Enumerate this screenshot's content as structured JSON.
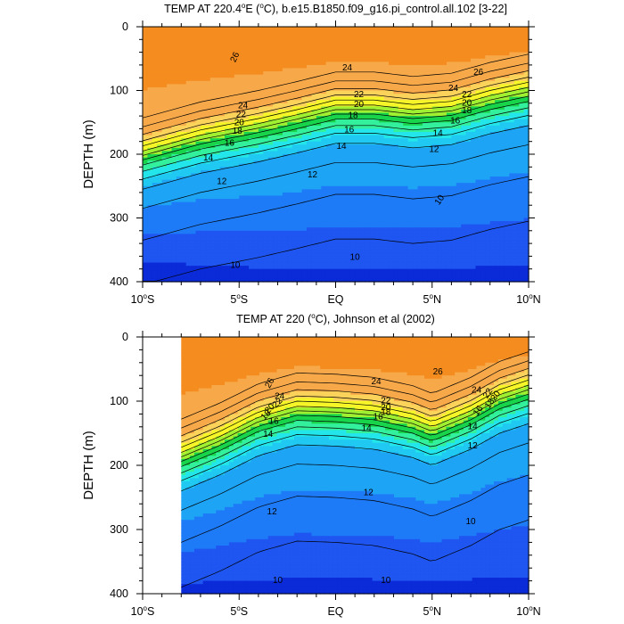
{
  "chart_data": [
    {
      "type": "contour",
      "title": "TEMP AT 220.4°E (°C), b.e15.B1850.f09_g16.pi_control.all.102 [3-22]",
      "title_parts": {
        "a": "TEMP AT 220.4",
        "b": "E (",
        "c": "C), b.e15.B1850.f09_g16.pi_control.all.102 [3-22]",
        "deg": "o"
      },
      "ylabel": "DEPTH (m)",
      "xlim": [
        -10,
        10
      ],
      "ylim": [
        400,
        0
      ],
      "x_ticks": [
        {
          "value": -10,
          "num": "10",
          "deg": "o",
          "hem": "S"
        },
        {
          "value": -5,
          "num": "5",
          "deg": "o",
          "hem": "S"
        },
        {
          "value": 0,
          "num": "EQ",
          "deg": "",
          "hem": ""
        },
        {
          "value": 5,
          "num": "5",
          "deg": "o",
          "hem": "N"
        },
        {
          "value": 10,
          "num": "10",
          "deg": "o",
          "hem": "N"
        }
      ],
      "y_ticks": [
        {
          "value": 0,
          "label": "0"
        },
        {
          "value": 100,
          "label": "100"
        },
        {
          "value": 200,
          "label": "200"
        },
        {
          "value": 300,
          "label": "300"
        },
        {
          "value": 400,
          "label": "400"
        }
      ],
      "data_x_range": [
        -10,
        10
      ],
      "thermocline_depth": [
        {
          "lat": -10,
          "depth": 205
        },
        {
          "lat": -7,
          "depth": 180
        },
        {
          "lat": -4,
          "depth": 162
        },
        {
          "lat": -2,
          "depth": 148
        },
        {
          "lat": 0,
          "depth": 133
        },
        {
          "lat": 2,
          "depth": 133
        },
        {
          "lat": 4,
          "depth": 140
        },
        {
          "lat": 6,
          "depth": 135
        },
        {
          "lat": 8,
          "depth": 118
        },
        {
          "lat": 10,
          "depth": 105
        }
      ],
      "contour_labels": [
        {
          "text": "26",
          "lat": -5.2,
          "depth": 48,
          "angle": -65
        },
        {
          "text": "24",
          "lat": 0.6,
          "depth": 65,
          "angle": 0
        },
        {
          "text": "26",
          "lat": 7.4,
          "depth": 72,
          "angle": 0
        },
        {
          "text": "24",
          "lat": 6.1,
          "depth": 97,
          "angle": 0
        },
        {
          "text": "22",
          "lat": 6.8,
          "depth": 107,
          "angle": 0
        },
        {
          "text": "20",
          "lat": 6.8,
          "depth": 120,
          "angle": 0
        },
        {
          "text": "18",
          "lat": 6.8,
          "depth": 132,
          "angle": 0
        },
        {
          "text": "16",
          "lat": 6.2,
          "depth": 148,
          "angle": 0
        },
        {
          "text": "14",
          "lat": 5.3,
          "depth": 168,
          "angle": 0
        },
        {
          "text": "12",
          "lat": 5.1,
          "depth": 193,
          "angle": 0
        },
        {
          "text": "22",
          "lat": 1.2,
          "depth": 107,
          "angle": 0
        },
        {
          "text": "20",
          "lat": 1.2,
          "depth": 122,
          "angle": 0
        },
        {
          "text": "18",
          "lat": 0.9,
          "depth": 140,
          "angle": 0
        },
        {
          "text": "16",
          "lat": 0.7,
          "depth": 162,
          "angle": 0
        },
        {
          "text": "14",
          "lat": 0.3,
          "depth": 188,
          "angle": 0
        },
        {
          "text": "24",
          "lat": -4.8,
          "depth": 124,
          "angle": 0
        },
        {
          "text": "22",
          "lat": -4.9,
          "depth": 138,
          "angle": 0
        },
        {
          "text": "20",
          "lat": -5.0,
          "depth": 151,
          "angle": 0
        },
        {
          "text": "18",
          "lat": -5.1,
          "depth": 164,
          "angle": 0
        },
        {
          "text": "16",
          "lat": -5.5,
          "depth": 183,
          "angle": 0
        },
        {
          "text": "14",
          "lat": -6.6,
          "depth": 206,
          "angle": 0
        },
        {
          "text": "12",
          "lat": -5.9,
          "depth": 243,
          "angle": 0
        },
        {
          "text": "12",
          "lat": -1.2,
          "depth": 233,
          "angle": 0
        },
        {
          "text": "10",
          "lat": 5.4,
          "depth": 272,
          "angle": -55
        },
        {
          "text": "10",
          "lat": -5.2,
          "depth": 375,
          "angle": 0
        },
        {
          "text": "10",
          "lat": 1.0,
          "depth": 362,
          "angle": 0
        }
      ]
    },
    {
      "type": "contour",
      "title": "TEMP AT 220 (°C), Johnson et al (2002)",
      "title_parts": {
        "a": "TEMP AT 220 (",
        "b": "",
        "c": "C), Johnson et al (2002)",
        "deg": "o"
      },
      "ylabel": "DEPTH (m)",
      "xlim": [
        -10,
        10
      ],
      "ylim": [
        400,
        0
      ],
      "x_ticks": [
        {
          "value": -10,
          "num": "10",
          "deg": "o",
          "hem": "S"
        },
        {
          "value": -5,
          "num": "5",
          "deg": "o",
          "hem": "S"
        },
        {
          "value": 0,
          "num": "EQ",
          "deg": "",
          "hem": ""
        },
        {
          "value": 5,
          "num": "5",
          "deg": "o",
          "hem": "N"
        },
        {
          "value": 10,
          "num": "10",
          "deg": "o",
          "hem": "N"
        }
      ],
      "y_ticks": [
        {
          "value": 0,
          "label": "0"
        },
        {
          "value": 100,
          "label": "100"
        },
        {
          "value": 200,
          "label": "200"
        },
        {
          "value": 300,
          "label": "300"
        },
        {
          "value": 400,
          "label": "400"
        }
      ],
      "data_x_range": [
        -8,
        10
      ],
      "thermocline_depth": [
        {
          "lat": -8,
          "depth": 190
        },
        {
          "lat": -6,
          "depth": 165
        },
        {
          "lat": -4,
          "depth": 135
        },
        {
          "lat": -2,
          "depth": 118
        },
        {
          "lat": 0,
          "depth": 120
        },
        {
          "lat": 2,
          "depth": 125
        },
        {
          "lat": 4,
          "depth": 138
        },
        {
          "lat": 5,
          "depth": 150
        },
        {
          "lat": 7,
          "depth": 125
        },
        {
          "lat": 8.5,
          "depth": 100
        },
        {
          "lat": 10,
          "depth": 85
        }
      ],
      "contour_labels": [
        {
          "text": "26",
          "lat": -3.4,
          "depth": 72,
          "angle": -60
        },
        {
          "text": "24",
          "lat": -2.9,
          "depth": 93,
          "angle": 0
        },
        {
          "text": "22",
          "lat": -3.0,
          "depth": 103,
          "angle": -45
        },
        {
          "text": "20",
          "lat": -3.4,
          "depth": 112,
          "angle": -45
        },
        {
          "text": "18",
          "lat": -3.6,
          "depth": 122,
          "angle": -45
        },
        {
          "text": "16",
          "lat": -3.2,
          "depth": 132,
          "angle": 0
        },
        {
          "text": "14",
          "lat": -3.5,
          "depth": 152,
          "angle": 0
        },
        {
          "text": "24",
          "lat": 2.1,
          "depth": 70,
          "angle": 0
        },
        {
          "text": "26",
          "lat": 5.3,
          "depth": 55,
          "angle": 0
        },
        {
          "text": "22",
          "lat": 2.6,
          "depth": 100,
          "angle": 0
        },
        {
          "text": "20",
          "lat": 2.6,
          "depth": 110,
          "angle": 0
        },
        {
          "text": "18",
          "lat": 2.6,
          "depth": 118,
          "angle": 0
        },
        {
          "text": "16",
          "lat": 2.2,
          "depth": 125,
          "angle": 0
        },
        {
          "text": "14",
          "lat": 1.6,
          "depth": 143,
          "angle": 0
        },
        {
          "text": "24",
          "lat": 7.3,
          "depth": 83,
          "angle": 0
        },
        {
          "text": "22",
          "lat": 7.9,
          "depth": 88,
          "angle": -55
        },
        {
          "text": "20",
          "lat": 8.3,
          "depth": 92,
          "angle": -55
        },
        {
          "text": "18",
          "lat": 8.0,
          "depth": 104,
          "angle": -55
        },
        {
          "text": "16",
          "lat": 7.4,
          "depth": 115,
          "angle": -55
        },
        {
          "text": "14",
          "lat": 7.1,
          "depth": 140,
          "angle": 0
        },
        {
          "text": "12",
          "lat": 7.1,
          "depth": 170,
          "angle": 0
        },
        {
          "text": "12",
          "lat": 1.7,
          "depth": 243,
          "angle": 0
        },
        {
          "text": "12",
          "lat": -3.3,
          "depth": 273,
          "angle": 0
        },
        {
          "text": "10",
          "lat": 7.0,
          "depth": 288,
          "angle": 0
        },
        {
          "text": "10",
          "lat": -3.0,
          "depth": 380,
          "angle": 0
        },
        {
          "text": "10",
          "lat": 2.6,
          "depth": 380,
          "angle": 0
        }
      ]
    }
  ],
  "colors": {
    "ramp": [
      "#0b2bd8",
      "#1f55f0",
      "#1e7bf7",
      "#1ea4f5",
      "#20c9f2",
      "#22e6ea",
      "#33f09c",
      "#18d44a",
      "#a0f032",
      "#f5f528",
      "#fbd35a",
      "#f7a94a",
      "#f58c1f",
      "#fa3d0e"
    ],
    "line": "#000000"
  }
}
